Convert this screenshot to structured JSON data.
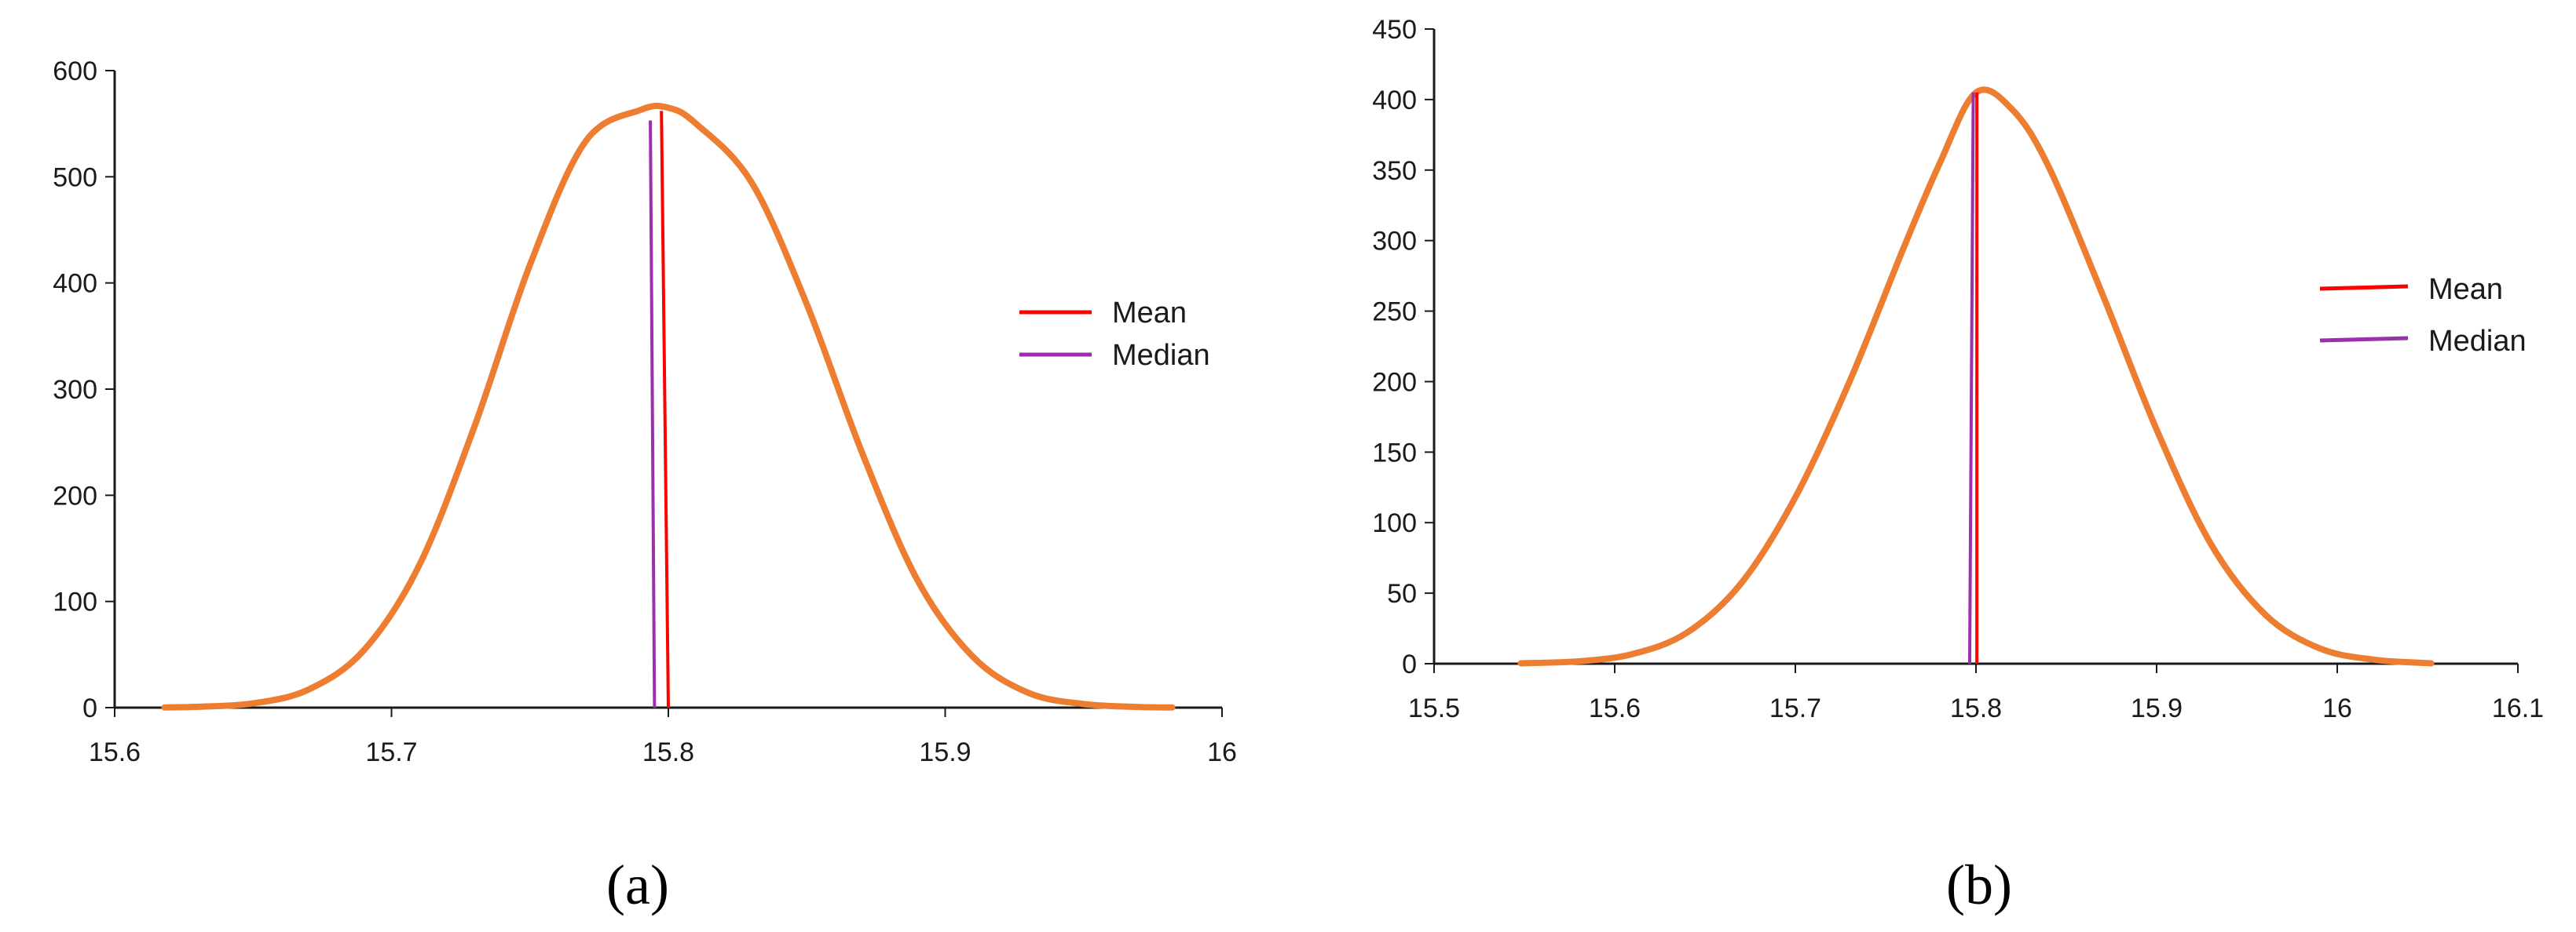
{
  "colors": {
    "curve": "#ED7D31",
    "mean": "#FF0000",
    "median": "#9B2FAE",
    "axis": "#1a1a1a"
  },
  "chart_data": [
    {
      "type": "line",
      "panel_label": "(a)",
      "xlim": [
        15.6,
        16
      ],
      "ylim": [
        0,
        600
      ],
      "x_ticks": [
        "15.6",
        "15.7",
        "15.8",
        "15.9",
        "16"
      ],
      "y_ticks": [
        "0",
        "100",
        "200",
        "300",
        "400",
        "500",
        "600"
      ],
      "legend": {
        "placement": "right",
        "entries": [
          "Mean",
          "Median"
        ]
      },
      "grid": false,
      "series": [
        {
          "kind": "density",
          "x": [
            15.618,
            15.63,
            15.65,
            15.67,
            15.69,
            15.71,
            15.73,
            15.75,
            15.77,
            15.79,
            15.8,
            15.81,
            15.83,
            15.85,
            15.87,
            15.89,
            15.91,
            15.93,
            15.95,
            15.97,
            15.982
          ],
          "y": [
            0.2,
            0.8,
            4,
            17,
            54,
            134,
            265,
            417,
            533,
            563,
            565,
            550,
            495,
            380,
            240,
            120,
            48,
            14,
            3.4,
            0.6,
            0.2
          ]
        },
        {
          "name": "Mean",
          "kind": "vline",
          "x_bottom": 15.8,
          "x_top": 15.7975,
          "y_top": 562
        },
        {
          "name": "Median",
          "kind": "vline",
          "x_bottom": 15.795,
          "x_top": 15.7935,
          "y_top": 553
        }
      ]
    },
    {
      "type": "line",
      "panel_label": "(b)",
      "xlim": [
        15.5,
        16.1
      ],
      "ylim": [
        0,
        450
      ],
      "x_ticks": [
        "15.5",
        "15.6",
        "15.7",
        "15.8",
        "15.9",
        "16",
        "16.1"
      ],
      "y_ticks": [
        "0",
        "50",
        "100",
        "150",
        "200",
        "250",
        "300",
        "350",
        "400",
        "450"
      ],
      "legend": {
        "placement": "right",
        "entries": [
          "Mean",
          "Median"
        ]
      },
      "grid": false,
      "series": [
        {
          "kind": "density",
          "x": [
            15.548,
            15.58,
            15.61,
            15.64,
            15.67,
            15.7,
            15.73,
            15.76,
            15.78,
            15.8,
            15.82,
            15.84,
            15.87,
            15.9,
            15.93,
            15.96,
            15.99,
            16.02,
            16.052
          ],
          "y": [
            0.3,
            1.7,
            6.9,
            22,
            57,
            118,
            200,
            295,
            355,
            405,
            393,
            353,
            262,
            166,
            85,
            35,
            11,
            2.9,
            0.3
          ]
        },
        {
          "name": "Mean",
          "kind": "vline",
          "x_bottom": 15.8005,
          "x_top": 15.8005,
          "y_top": 405
        },
        {
          "name": "Median",
          "kind": "vline",
          "x_bottom": 15.7965,
          "x_top": 15.7985,
          "y_top": 405
        }
      ]
    }
  ]
}
